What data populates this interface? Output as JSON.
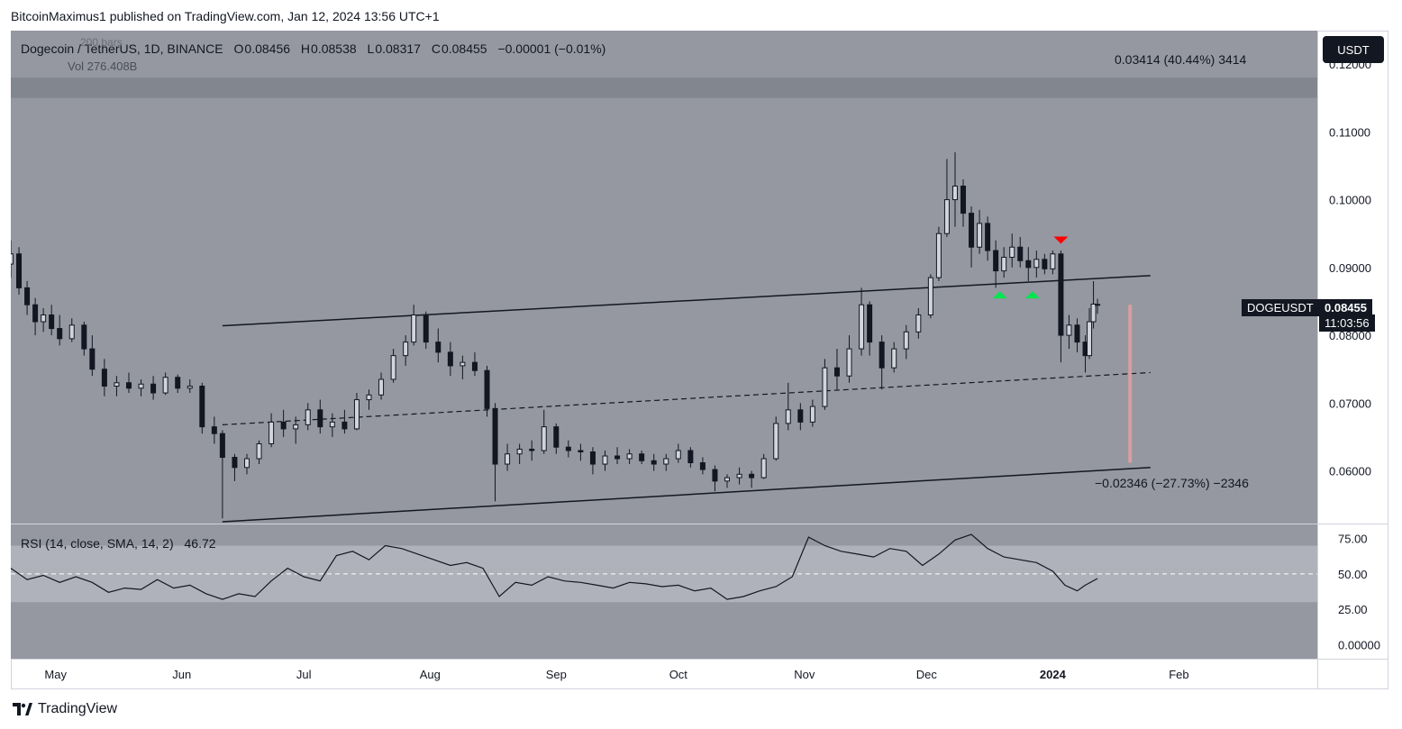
{
  "header": {
    "published_by": "BitcoinMaximus1 published on TradingView.com, Jan 12, 2024 13:56 UTC+1"
  },
  "footer": {
    "brand": "TradingView"
  },
  "legend": {
    "symbol": "Dogecoin / TetherUS, 1D, BINANCE",
    "o_label": "O",
    "o_value": "0.08456",
    "h_label": "H",
    "h_value": "0.08538",
    "l_label": "L",
    "l_value": "0.08317",
    "c_label": "C",
    "c_value": "0.08455",
    "change": "−0.00001 (−0.01%)",
    "bars_hint": "200 bars",
    "volume": "Vol 276.408B"
  },
  "price_axis": {
    "currency_button": "USDT",
    "ticker_badge": "DOGEUSDT",
    "last_price": "0.08455",
    "countdown": "11:03:56"
  },
  "rsi": {
    "label": "RSI (14, close, SMA, 14, 2)",
    "value": "46.72"
  },
  "measurements": {
    "upper": "0.03414 (40.44%) 3414",
    "lower": "−0.02346 (−27.73%) −2346"
  },
  "colors": {
    "pane_bg": "#9598a1",
    "candle": "#131722",
    "rsi_band": "#b2b5be",
    "arrow_up": "#00e64d",
    "arrow_down": "#ff0000",
    "range_bar": "#e6a0a0"
  },
  "chart_data": [
    {
      "type": "candlestick",
      "title": "Dogecoin / TetherUS, 1D, BINANCE",
      "x_ticks": [
        "May",
        "Jun",
        "Jul",
        "Aug",
        "Sep",
        "Oct",
        "Nov",
        "Dec",
        "2024",
        "Feb"
      ],
      "y_ticks": [
        "0.12000",
        "0.11000",
        "0.10000",
        "0.09000",
        "0.08000",
        "0.07000",
        "0.06000"
      ],
      "ylim": [
        0.0525,
        0.1236
      ],
      "x_range": [
        "2023-04-20",
        "2024-03-06"
      ],
      "grid": false,
      "channel": {
        "upper": [
          [
            "2023-06-11",
            0.0814
          ],
          [
            "2024-01-25",
            0.0888
          ]
        ],
        "middle": [
          [
            "2023-06-11",
            0.0668
          ],
          [
            "2024-01-25",
            0.0745
          ]
        ],
        "lower": [
          [
            "2023-06-11",
            0.0525
          ],
          [
            "2024-01-25",
            0.0605
          ]
        ]
      },
      "horizontal_band": [
        0.115,
        0.118
      ],
      "signals": [
        {
          "type": "up",
          "date": "2023-12-19",
          "value": 0.0865
        },
        {
          "type": "up",
          "date": "2023-12-27",
          "value": 0.0865
        },
        {
          "type": "down",
          "date": "2024-01-03",
          "value": 0.0935
        }
      ],
      "measure_bar": {
        "date": "2024-01-20",
        "from": 0.0612,
        "to": 0.0845
      },
      "candles": [
        [
          "2023-04-20",
          0.0905,
          0.094,
          0.0885,
          0.092
        ],
        [
          "2023-04-22",
          0.092,
          0.093,
          0.086,
          0.087
        ],
        [
          "2023-04-24",
          0.087,
          0.088,
          0.083,
          0.0845
        ],
        [
          "2023-04-26",
          0.0845,
          0.0855,
          0.08,
          0.082
        ],
        [
          "2023-04-28",
          0.082,
          0.084,
          0.0805,
          0.083
        ],
        [
          "2023-04-30",
          0.083,
          0.0845,
          0.08,
          0.081
        ],
        [
          "2023-05-02",
          0.081,
          0.083,
          0.0785,
          0.0795
        ],
        [
          "2023-05-05",
          0.0795,
          0.0825,
          0.079,
          0.0815
        ],
        [
          "2023-05-08",
          0.0815,
          0.082,
          0.077,
          0.078
        ],
        [
          "2023-05-10",
          0.078,
          0.08,
          0.074,
          0.075
        ],
        [
          "2023-05-13",
          0.075,
          0.0765,
          0.071,
          0.0725
        ],
        [
          "2023-05-16",
          0.0725,
          0.074,
          0.071,
          0.073
        ],
        [
          "2023-05-19",
          0.073,
          0.0745,
          0.0715,
          0.0722
        ],
        [
          "2023-05-22",
          0.0722,
          0.0735,
          0.071,
          0.0728
        ],
        [
          "2023-05-25",
          0.0728,
          0.074,
          0.0705,
          0.0715
        ],
        [
          "2023-05-28",
          0.0715,
          0.0745,
          0.0712,
          0.0738
        ],
        [
          "2023-05-31",
          0.0738,
          0.0742,
          0.0715,
          0.0722
        ],
        [
          "2023-06-03",
          0.0722,
          0.0735,
          0.0715,
          0.0725
        ],
        [
          "2023-06-06",
          0.0725,
          0.073,
          0.0655,
          0.0665
        ],
        [
          "2023-06-09",
          0.0665,
          0.068,
          0.064,
          0.0655
        ],
        [
          "2023-06-11",
          0.0655,
          0.066,
          0.053,
          0.062
        ],
        [
          "2023-06-14",
          0.062,
          0.0625,
          0.0585,
          0.0605
        ],
        [
          "2023-06-17",
          0.0605,
          0.0625,
          0.0595,
          0.0618
        ],
        [
          "2023-06-20",
          0.0618,
          0.0645,
          0.061,
          0.064
        ],
        [
          "2023-06-23",
          0.064,
          0.0685,
          0.0635,
          0.0672
        ],
        [
          "2023-06-26",
          0.0672,
          0.069,
          0.065,
          0.0662
        ],
        [
          "2023-06-29",
          0.0662,
          0.068,
          0.064,
          0.0668
        ],
        [
          "2023-07-02",
          0.0668,
          0.07,
          0.066,
          0.069
        ],
        [
          "2023-07-05",
          0.069,
          0.0705,
          0.0655,
          0.0665
        ],
        [
          "2023-07-08",
          0.0665,
          0.0685,
          0.065,
          0.0672
        ],
        [
          "2023-07-11",
          0.0672,
          0.069,
          0.0655,
          0.0662
        ],
        [
          "2023-07-14",
          0.0662,
          0.0715,
          0.066,
          0.0705
        ],
        [
          "2023-07-17",
          0.0705,
          0.072,
          0.069,
          0.0712
        ],
        [
          "2023-07-20",
          0.0712,
          0.0745,
          0.0705,
          0.0735
        ],
        [
          "2023-07-23",
          0.0735,
          0.078,
          0.073,
          0.077
        ],
        [
          "2023-07-26",
          0.077,
          0.08,
          0.0755,
          0.079
        ],
        [
          "2023-07-28",
          0.079,
          0.0845,
          0.0785,
          0.083
        ],
        [
          "2023-07-31",
          0.083,
          0.0835,
          0.078,
          0.079
        ],
        [
          "2023-08-03",
          0.079,
          0.081,
          0.076,
          0.0775
        ],
        [
          "2023-08-06",
          0.0775,
          0.079,
          0.074,
          0.0755
        ],
        [
          "2023-08-09",
          0.0755,
          0.077,
          0.0735,
          0.076
        ],
        [
          "2023-08-12",
          0.076,
          0.0775,
          0.074,
          0.0748
        ],
        [
          "2023-08-15",
          0.0748,
          0.0755,
          0.068,
          0.0692
        ],
        [
          "2023-08-17",
          0.0692,
          0.07,
          0.0555,
          0.061
        ],
        [
          "2023-08-20",
          0.061,
          0.064,
          0.06,
          0.0625
        ],
        [
          "2023-08-23",
          0.0625,
          0.064,
          0.061,
          0.0632
        ],
        [
          "2023-08-26",
          0.0632,
          0.0645,
          0.0615,
          0.063
        ],
        [
          "2023-08-29",
          0.063,
          0.069,
          0.0625,
          0.0665
        ],
        [
          "2023-09-01",
          0.0665,
          0.067,
          0.0625,
          0.0635
        ],
        [
          "2023-09-04",
          0.0635,
          0.0645,
          0.062,
          0.063
        ],
        [
          "2023-09-07",
          0.063,
          0.064,
          0.0615,
          0.0628
        ],
        [
          "2023-09-10",
          0.0628,
          0.0635,
          0.0595,
          0.061
        ],
        [
          "2023-09-13",
          0.061,
          0.063,
          0.06,
          0.0622
        ],
        [
          "2023-09-16",
          0.0622,
          0.0635,
          0.061,
          0.0618
        ],
        [
          "2023-09-19",
          0.0618,
          0.0632,
          0.061,
          0.0625
        ],
        [
          "2023-09-22",
          0.0625,
          0.063,
          0.061,
          0.0615
        ],
        [
          "2023-09-25",
          0.0615,
          0.0625,
          0.06,
          0.061
        ],
        [
          "2023-09-28",
          0.061,
          0.0625,
          0.06,
          0.0618
        ],
        [
          "2023-10-01",
          0.0618,
          0.064,
          0.0612,
          0.063
        ],
        [
          "2023-10-04",
          0.063,
          0.0635,
          0.0605,
          0.0612
        ],
        [
          "2023-10-07",
          0.0612,
          0.062,
          0.0595,
          0.0602
        ],
        [
          "2023-10-10",
          0.0602,
          0.0608,
          0.057,
          0.0585
        ],
        [
          "2023-10-13",
          0.0585,
          0.0595,
          0.0575,
          0.059
        ],
        [
          "2023-10-16",
          0.059,
          0.0605,
          0.058,
          0.0595
        ],
        [
          "2023-10-19",
          0.0595,
          0.06,
          0.0575,
          0.059
        ],
        [
          "2023-10-22",
          0.059,
          0.0625,
          0.0588,
          0.0618
        ],
        [
          "2023-10-25",
          0.0618,
          0.068,
          0.0615,
          0.067
        ],
        [
          "2023-10-28",
          0.067,
          0.073,
          0.066,
          0.069
        ],
        [
          "2023-10-31",
          0.069,
          0.07,
          0.066,
          0.0672
        ],
        [
          "2023-11-03",
          0.0672,
          0.0705,
          0.0665,
          0.0695
        ],
        [
          "2023-11-06",
          0.0695,
          0.0765,
          0.069,
          0.0752
        ],
        [
          "2023-11-09",
          0.0752,
          0.078,
          0.072,
          0.074
        ],
        [
          "2023-11-12",
          0.074,
          0.08,
          0.073,
          0.078
        ],
        [
          "2023-11-15",
          0.078,
          0.087,
          0.077,
          0.0845
        ],
        [
          "2023-11-17",
          0.0845,
          0.085,
          0.077,
          0.079
        ],
        [
          "2023-11-20",
          0.079,
          0.08,
          0.072,
          0.0752
        ],
        [
          "2023-11-23",
          0.0752,
          0.079,
          0.0745,
          0.078
        ],
        [
          "2023-11-26",
          0.078,
          0.0815,
          0.0765,
          0.0805
        ],
        [
          "2023-11-29",
          0.0805,
          0.084,
          0.0795,
          0.083
        ],
        [
          "2023-12-02",
          0.083,
          0.089,
          0.0825,
          0.0885
        ],
        [
          "2023-12-04",
          0.0885,
          0.096,
          0.088,
          0.095
        ],
        [
          "2023-12-06",
          0.095,
          0.106,
          0.0945,
          0.1
        ],
        [
          "2023-12-08",
          0.1,
          0.107,
          0.096,
          0.102
        ],
        [
          "2023-12-10",
          0.102,
          0.103,
          0.096,
          0.098
        ],
        [
          "2023-12-12",
          0.098,
          0.099,
          0.09,
          0.093
        ],
        [
          "2023-12-14",
          0.093,
          0.0985,
          0.092,
          0.0965
        ],
        [
          "2023-12-16",
          0.0965,
          0.0975,
          0.091,
          0.0925
        ],
        [
          "2023-12-18",
          0.0925,
          0.094,
          0.087,
          0.0895
        ],
        [
          "2023-12-20",
          0.0895,
          0.093,
          0.0885,
          0.0915
        ],
        [
          "2023-12-22",
          0.0915,
          0.095,
          0.09,
          0.093
        ],
        [
          "2023-12-24",
          0.093,
          0.0945,
          0.09,
          0.091
        ],
        [
          "2023-12-26",
          0.091,
          0.093,
          0.088,
          0.09
        ],
        [
          "2023-12-28",
          0.09,
          0.0925,
          0.0885,
          0.0912
        ],
        [
          "2023-12-30",
          0.0912,
          0.092,
          0.089,
          0.0898
        ],
        [
          "2024-01-01",
          0.0898,
          0.0925,
          0.089,
          0.092
        ],
        [
          "2024-01-03",
          0.092,
          0.0925,
          0.076,
          0.08
        ],
        [
          "2024-01-05",
          0.08,
          0.083,
          0.078,
          0.0815
        ],
        [
          "2024-01-07",
          0.0815,
          0.0825,
          0.0775,
          0.079
        ],
        [
          "2024-01-09",
          0.079,
          0.08,
          0.0745,
          0.077
        ],
        [
          "2024-01-10",
          0.077,
          0.084,
          0.0765,
          0.082
        ],
        [
          "2024-01-11",
          0.082,
          0.088,
          0.081,
          0.0846
        ],
        [
          "2024-01-12",
          0.08456,
          0.08538,
          0.08317,
          0.08455
        ]
      ]
    },
    {
      "type": "line",
      "title": "RSI (14, close, SMA, 14, 2)",
      "y_ticks": [
        "75.00",
        "50.00",
        "25.00",
        "0.00000"
      ],
      "ylim": [
        -10,
        85
      ],
      "band": [
        30,
        70
      ],
      "midline": 50,
      "series": [
        {
          "x": [
            "2023-04-20",
            "2023-04-24",
            "2023-04-28",
            "2023-05-02",
            "2023-05-06",
            "2023-05-10",
            "2023-05-14",
            "2023-05-18",
            "2023-05-22",
            "2023-05-26",
            "2023-05-30",
            "2023-06-03",
            "2023-06-07",
            "2023-06-11",
            "2023-06-15",
            "2023-06-19",
            "2023-06-23",
            "2023-06-27",
            "2023-07-01",
            "2023-07-05",
            "2023-07-09",
            "2023-07-13",
            "2023-07-17",
            "2023-07-21",
            "2023-07-25",
            "2023-07-29",
            "2023-08-02",
            "2023-08-06",
            "2023-08-10",
            "2023-08-14",
            "2023-08-18",
            "2023-08-22",
            "2023-08-26",
            "2023-08-30",
            "2023-09-03",
            "2023-09-07",
            "2023-09-11",
            "2023-09-15",
            "2023-09-19",
            "2023-09-23",
            "2023-09-27",
            "2023-10-01",
            "2023-10-05",
            "2023-10-09",
            "2023-10-13",
            "2023-10-17",
            "2023-10-21",
            "2023-10-25",
            "2023-10-29",
            "2023-11-02",
            "2023-11-06",
            "2023-11-10",
            "2023-11-14",
            "2023-11-18",
            "2023-11-22",
            "2023-11-26",
            "2023-11-30",
            "2023-12-04",
            "2023-12-08",
            "2023-12-12",
            "2023-12-16",
            "2023-12-20",
            "2023-12-24",
            "2023-12-28",
            "2024-01-01",
            "2024-01-04",
            "2024-01-07",
            "2024-01-09",
            "2024-01-12"
          ],
          "values": [
            54,
            46,
            49,
            44,
            48,
            44,
            37,
            40,
            39,
            46,
            40,
            42,
            36,
            32,
            36,
            34,
            45,
            54,
            48,
            45,
            63,
            66,
            60,
            70,
            68,
            64,
            60,
            56,
            58,
            54,
            34,
            44,
            42,
            48,
            45,
            44,
            42,
            40,
            44,
            43,
            41,
            42,
            38,
            40,
            32,
            34,
            38,
            41,
            48,
            76,
            70,
            66,
            64,
            62,
            68,
            66,
            56,
            64,
            74,
            78,
            68,
            62,
            60,
            58,
            52,
            42,
            38,
            42,
            46.72
          ]
        }
      ]
    }
  ]
}
